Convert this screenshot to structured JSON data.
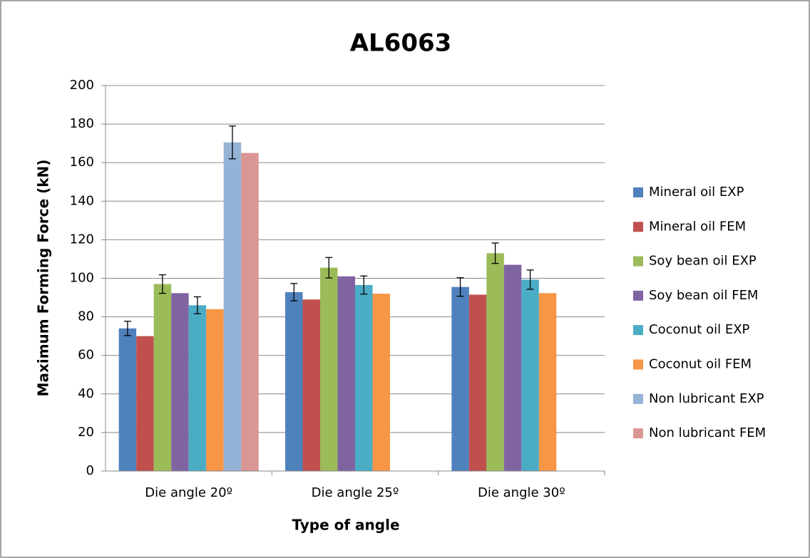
{
  "chart_data": {
    "type": "bar",
    "title": "AL6063",
    "x_label": "Type of angle",
    "y_label": "Maximum Forming Force (kN)",
    "categories": [
      "Die angle 20º",
      "Die angle 25º",
      "Die angle 30º"
    ],
    "series": [
      {
        "name": "Mineral oil EXP",
        "color": "#4f81bd",
        "values": [
          74,
          92.8,
          95.5
        ],
        "errors": [
          3.7,
          4.5,
          4.8
        ]
      },
      {
        "name": "Mineral oil FEM",
        "color": "#c0504d",
        "values": [
          70,
          89,
          91.5
        ]
      },
      {
        "name": "Soy bean oil EXP",
        "color": "#9bbb59",
        "values": [
          97,
          105.5,
          113
        ],
        "errors": [
          4.8,
          5.3,
          5.3
        ]
      },
      {
        "name": "Soy bean oil FEM",
        "color": "#8064a2",
        "values": [
          92.3,
          101,
          107
        ]
      },
      {
        "name": "Coconut oil EXP",
        "color": "#4bacc6",
        "values": [
          86,
          96.5,
          99.3
        ],
        "errors": [
          4.4,
          4.7,
          5
        ]
      },
      {
        "name": "Coconut oil FEM",
        "color": "#f79646",
        "values": [
          84,
          92,
          92.3
        ]
      },
      {
        "name": "Non lubricant EXP",
        "color": "#95b3d7",
        "values": [
          170.5,
          0,
          0
        ],
        "errors": [
          8.5,
          0,
          0
        ]
      },
      {
        "name": "Non lubricant FEM",
        "color": "#d99694",
        "values": [
          165,
          0,
          0
        ]
      }
    ],
    "ylim": [
      0,
      200
    ],
    "yticks": [
      0,
      20,
      40,
      60,
      80,
      100,
      120,
      140,
      160,
      180,
      200
    ],
    "grid": true,
    "legend": "right"
  }
}
